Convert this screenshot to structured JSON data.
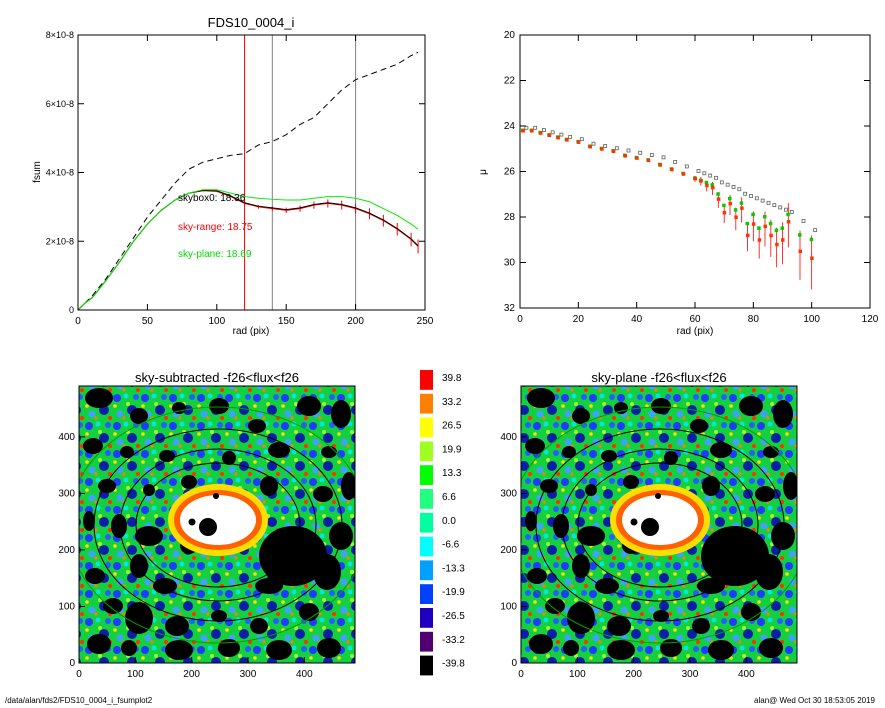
{
  "footer": {
    "path": "/data/alan/fds2/FDS10_0004_i_fsumplot2",
    "stamp": "alan@  Wed Oct 30 18:53:05 2019"
  },
  "colors": {
    "axis": "#000000",
    "red": "#ff0000",
    "green": "#00ee00",
    "dashed": "#000000",
    "marker_line": "#808080"
  },
  "chart_data": [
    {
      "type": "line",
      "title": "FDS10_0004_i",
      "xlabel": "rad (pix)",
      "ylabel": "fsum",
      "xlim": [
        0,
        250
      ],
      "ylim": [
        0,
        8e-08
      ],
      "xticks": [
        "0",
        "50",
        "100",
        "150",
        "200",
        "250"
      ],
      "yticks": [
        "0",
        "2×10-8",
        "4×10-8",
        "6×10-8",
        "8×10-8"
      ],
      "vlines": [
        {
          "x": 120,
          "color": "red"
        },
        {
          "x": 140,
          "color": "gray"
        },
        {
          "x": 200,
          "color": "gray"
        }
      ],
      "annotations": [
        "skybox0: 18.36",
        "sky-range: 18.75",
        "sky-plane: 18.69"
      ],
      "x": [
        0,
        5,
        10,
        20,
        30,
        40,
        50,
        60,
        70,
        80,
        90,
        100,
        110,
        120,
        130,
        140,
        150,
        160,
        170,
        180,
        190,
        200,
        210,
        220,
        230,
        240,
        245
      ],
      "series": [
        {
          "color": "black",
          "style": "dashed",
          "values": [
            0,
            2e-09,
            4e-09,
            9e-09,
            1.5e-08,
            2.1e-08,
            2.7e-08,
            3.2e-08,
            3.7e-08,
            4.1e-08,
            4.3e-08,
            4.4e-08,
            4.5e-08,
            4.55e-08,
            4.8e-08,
            4.9e-08,
            5.1e-08,
            5.4e-08,
            5.6e-08,
            6e-08,
            6.4e-08,
            6.7e-08,
            6.85e-08,
            7e-08,
            7.15e-08,
            7.4e-08,
            7.5e-08
          ]
        },
        {
          "color": "red",
          "style": "solid",
          "values": [
            0,
            2e-09,
            3.5e-09,
            8.5e-09,
            1.4e-08,
            2e-08,
            2.5e-08,
            2.9e-08,
            3.2e-08,
            3.4e-08,
            3.47e-08,
            3.45e-08,
            3.3e-08,
            3.1e-08,
            3e-08,
            2.95e-08,
            2.9e-08,
            2.95e-08,
            3.05e-08,
            3.1e-08,
            3.05e-08,
            2.95e-08,
            2.8e-08,
            2.6e-08,
            2.35e-08,
            2.05e-08,
            1.85e-08
          ]
        },
        {
          "color": "black",
          "style": "solid",
          "values": [
            0,
            2e-09,
            3.5e-09,
            8.5e-09,
            1.4e-08,
            2e-08,
            2.5e-08,
            2.9e-08,
            3.2e-08,
            3.4e-08,
            3.48e-08,
            3.47e-08,
            3.32e-08,
            3.12e-08,
            3.02e-08,
            2.97e-08,
            2.92e-08,
            2.97e-08,
            3.07e-08,
            3.12e-08,
            3.07e-08,
            2.97e-08,
            2.82e-08,
            2.62e-08,
            2.37e-08,
            2.07e-08,
            1.87e-08
          ]
        },
        {
          "color": "green",
          "style": "solid",
          "values": [
            0,
            2e-09,
            3.5e-09,
            8.5e-09,
            1.4e-08,
            2e-08,
            2.5e-08,
            2.9e-08,
            3.2e-08,
            3.4e-08,
            3.5e-08,
            3.5e-08,
            3.4e-08,
            3.3e-08,
            3.25e-08,
            3.22e-08,
            3.2e-08,
            3.2e-08,
            3.25e-08,
            3.3e-08,
            3.3e-08,
            3.25e-08,
            3.15e-08,
            2.95e-08,
            2.75e-08,
            2.5e-08,
            2.35e-08
          ]
        }
      ]
    },
    {
      "type": "scatter",
      "xlabel": "rad (pix)",
      "ylabel": "μ",
      "xlim": [
        0,
        120
      ],
      "ylim": [
        32,
        20
      ],
      "xticks": [
        "0",
        "20",
        "40",
        "60",
        "80",
        "100",
        "120"
      ],
      "yticks": [
        "20",
        "22",
        "24",
        "26",
        "28",
        "30",
        "32"
      ],
      "x": [
        1,
        4,
        7,
        10,
        13,
        16,
        20,
        24,
        28,
        32,
        36,
        40,
        44,
        48,
        52,
        56,
        60,
        62,
        64,
        66,
        68,
        70,
        72,
        74,
        76,
        78,
        80,
        82,
        84,
        86,
        88,
        90,
        92,
        96,
        100
      ],
      "series": [
        {
          "name": "",
          "color": "red",
          "values": [
            24.2,
            24.2,
            24.3,
            24.4,
            24.5,
            24.6,
            24.7,
            24.9,
            25.0,
            25.1,
            25.3,
            25.4,
            25.5,
            25.7,
            25.9,
            26.1,
            26.3,
            26.4,
            26.6,
            26.7,
            27.2,
            27.8,
            27.4,
            28.0,
            27.6,
            28.8,
            28.3,
            29.0,
            28.4,
            28.8,
            29.2,
            29.0,
            28.2,
            29.5,
            29.8
          ]
        },
        {
          "name": "",
          "color": "green",
          "values": [
            24.2,
            24.2,
            24.3,
            24.4,
            24.5,
            24.6,
            24.7,
            24.9,
            25.0,
            25.1,
            25.3,
            25.4,
            25.5,
            25.7,
            25.9,
            26.1,
            26.3,
            26.4,
            26.5,
            26.6,
            27.0,
            27.5,
            27.2,
            27.7,
            27.4,
            28.3,
            27.9,
            28.5,
            28.0,
            28.3,
            28.6,
            28.5,
            27.9,
            28.8,
            29.0
          ]
        },
        {
          "name": "",
          "color": "gray-open",
          "values": [
            24.1,
            24.1,
            24.2,
            24.3,
            24.4,
            24.5,
            24.6,
            24.8,
            24.9,
            25.0,
            25.1,
            25.2,
            25.3,
            25.4,
            25.6,
            25.8,
            26.0,
            26.1,
            26.2,
            26.3,
            26.5,
            26.6,
            26.7,
            26.8,
            27.0,
            27.1,
            27.2,
            27.3,
            27.4,
            27.5,
            27.6,
            27.7,
            27.8,
            28.2,
            28.6
          ]
        }
      ]
    },
    {
      "type": "heatmap",
      "title": "sky-subtracted -f26<flux<f26",
      "xlim": [
        0,
        490
      ],
      "ylim": [
        0,
        490
      ],
      "xticks": [
        "0",
        "100",
        "200",
        "300",
        "400"
      ],
      "yticks": [
        "0",
        "100",
        "200",
        "300",
        "400"
      ]
    },
    {
      "type": "heatmap",
      "title": "sky-plane -f26<flux<f26",
      "xlim": [
        0,
        490
      ],
      "ylim": [
        0,
        490
      ],
      "xticks": [
        "0",
        "100",
        "200",
        "300",
        "400"
      ],
      "yticks": [
        "0",
        "100",
        "200",
        "300",
        "400"
      ]
    }
  ],
  "colorbar": {
    "labels": [
      "39.8",
      "33.2",
      "26.5",
      "19.9",
      "13.3",
      "6.6",
      "0.0",
      "-6.6",
      "-13.3",
      "-19.9",
      "-26.5",
      "-33.2",
      "-39.8"
    ],
    "colors": [
      "#ff0000",
      "#ff8000",
      "#ffff00",
      "#a0ff20",
      "#00ff00",
      "#20ff80",
      "#00ffa0",
      "#00ffff",
      "#00a0ff",
      "#0040ff",
      "#2000c0",
      "#500070",
      "#000000"
    ]
  }
}
